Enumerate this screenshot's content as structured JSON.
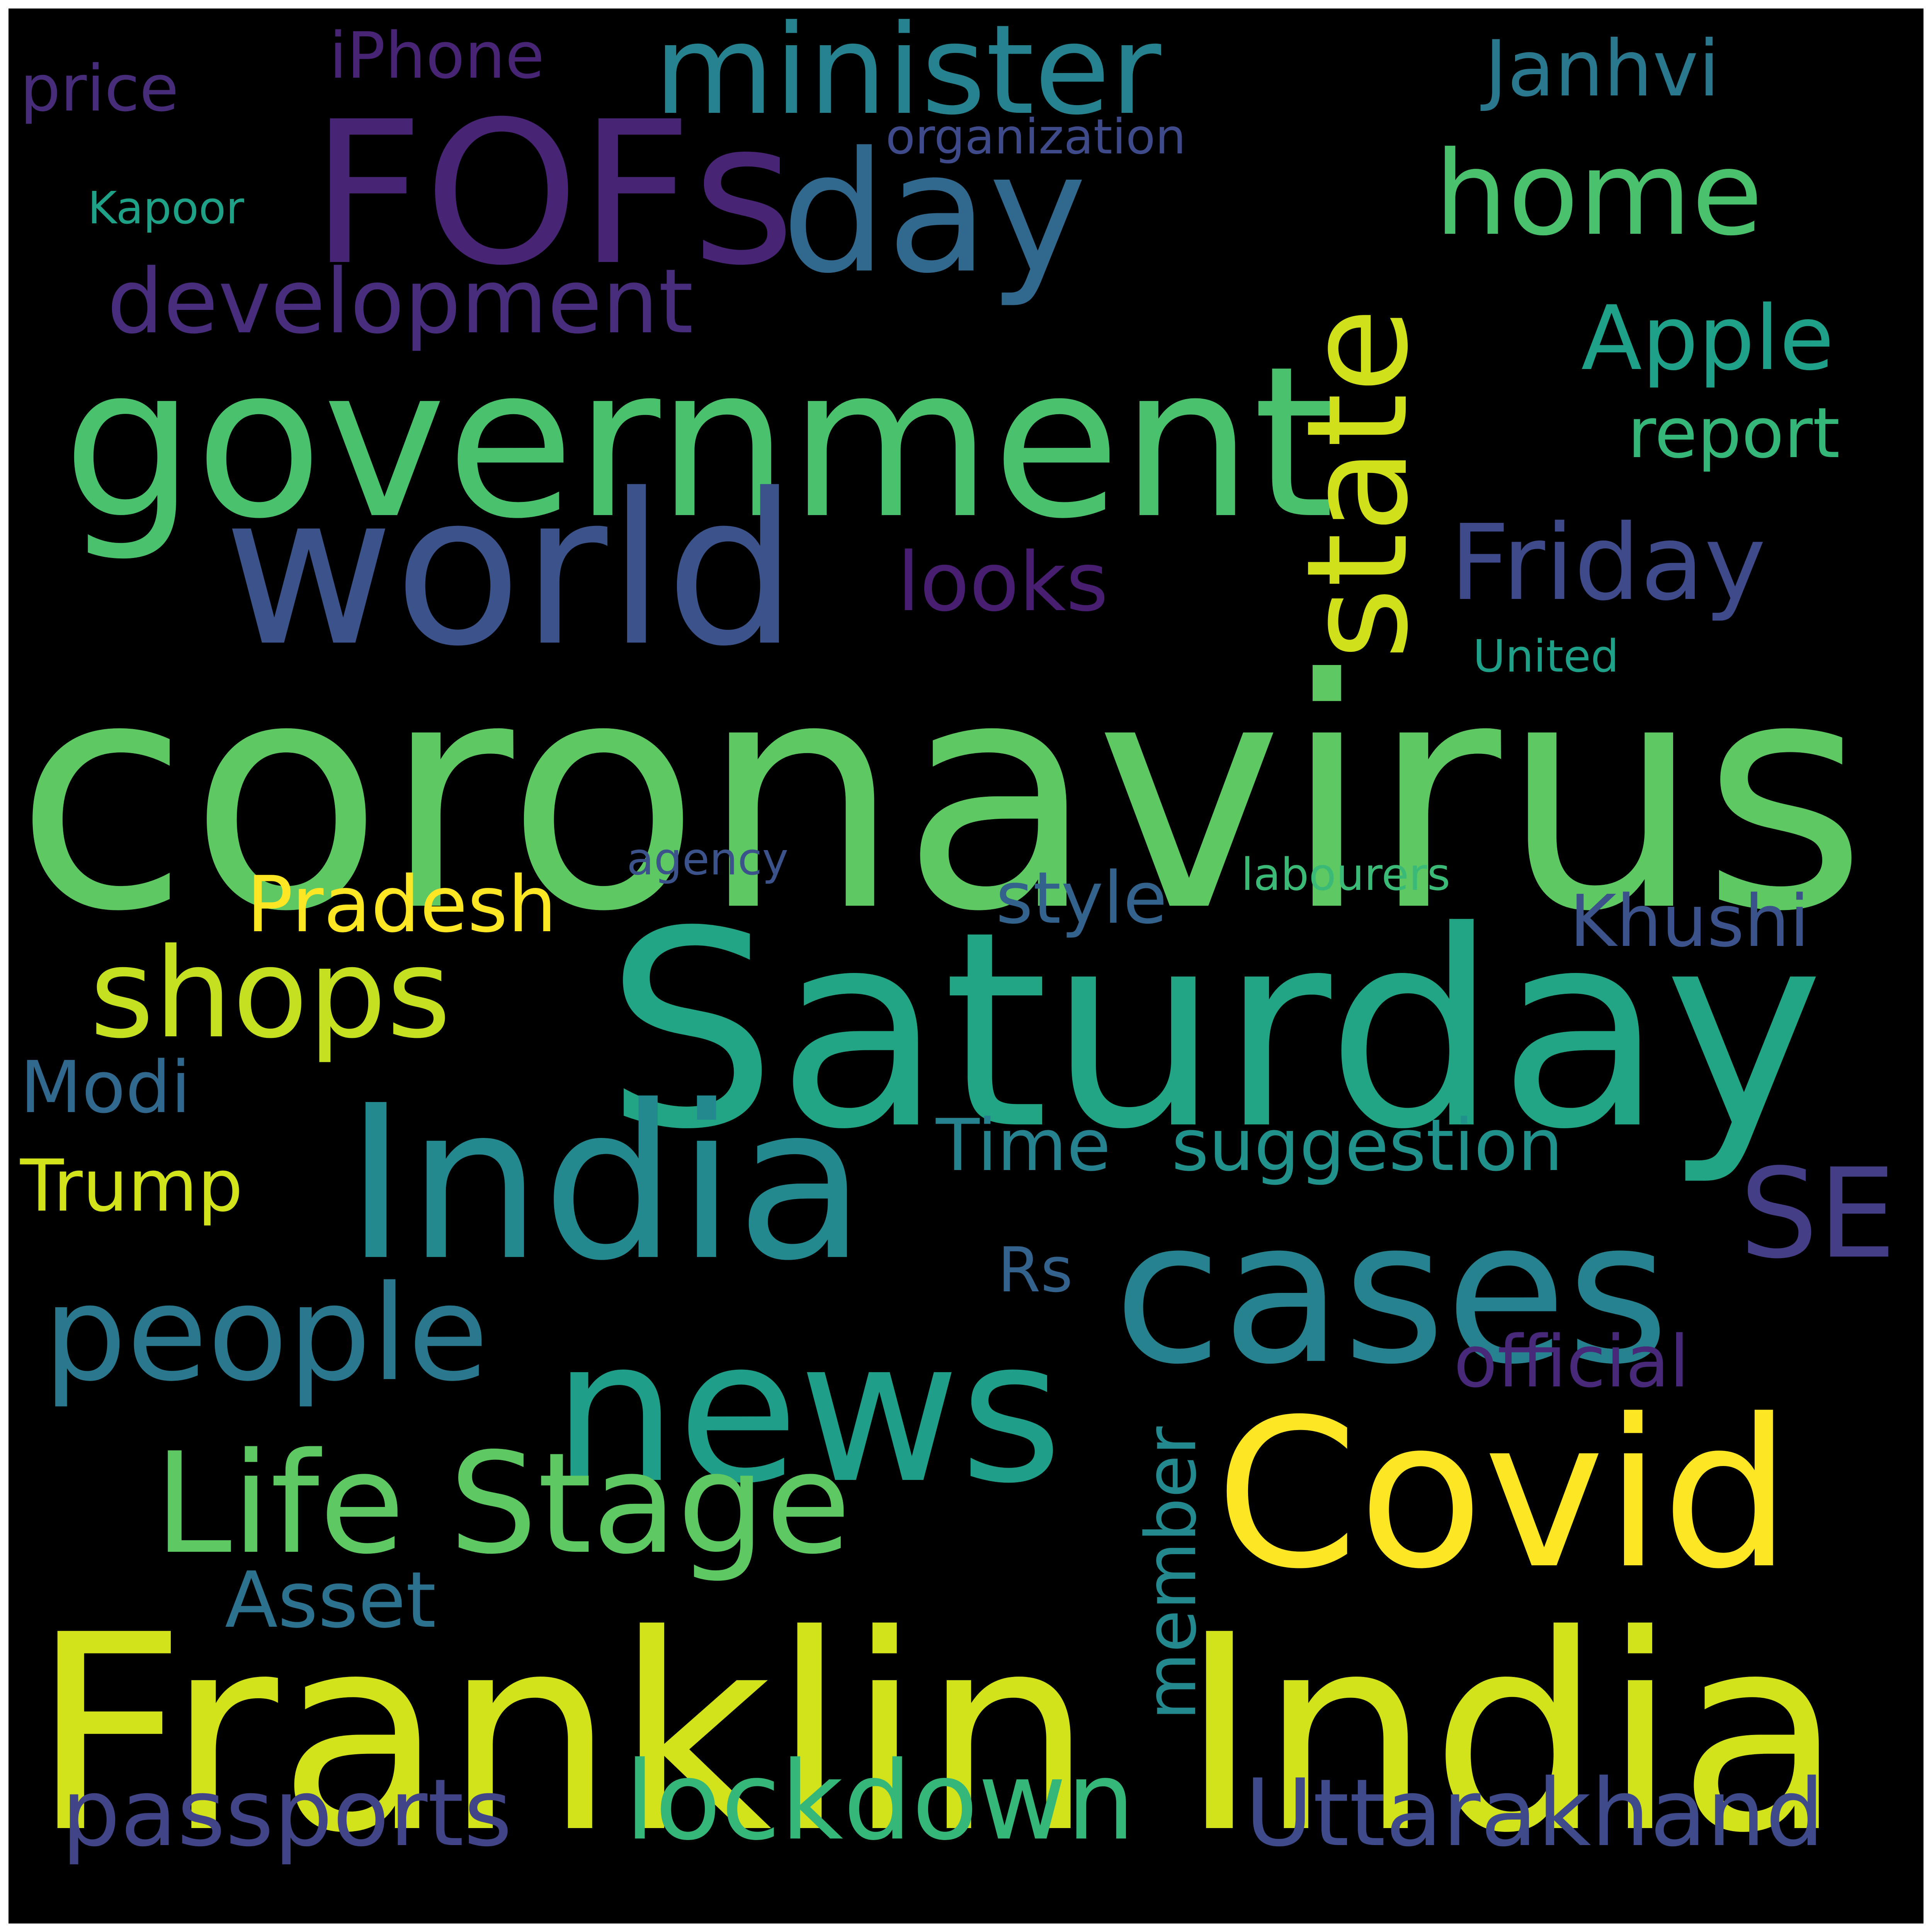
{
  "background_color": "#000000",
  "frame_color": "#ffffff",
  "words": [
    {
      "text": "coronavirus",
      "color": "#5ec962"
    },
    {
      "text": "Saturday",
      "color": "#21a585"
    },
    {
      "text": "Franklin India",
      "color": "#d2e21b"
    },
    {
      "text": "government",
      "color": "#4ac16d"
    },
    {
      "text": "world",
      "color": "#3b528b"
    },
    {
      "text": "FOFs",
      "color": "#482475"
    },
    {
      "text": "India",
      "color": "#23898e"
    },
    {
      "text": "cases",
      "color": "#26828e"
    },
    {
      "text": "news",
      "color": "#1f9e89"
    },
    {
      "text": "Covid",
      "color": "#fde725"
    },
    {
      "text": "state",
      "color": "#d0e11c"
    },
    {
      "text": "day",
      "color": "#31688e"
    },
    {
      "text": "minister",
      "color": "#26828e"
    },
    {
      "text": "home",
      "color": "#4ac16d"
    },
    {
      "text": "people",
      "color": "#2a788e"
    },
    {
      "text": "Life Stage",
      "color": "#5ec962"
    },
    {
      "text": "shops",
      "color": "#c5e021"
    },
    {
      "text": "lockdown",
      "color": "#35b779"
    },
    {
      "text": "Uttarakhand",
      "color": "#3e4a89"
    },
    {
      "text": "passports",
      "color": "#414487"
    },
    {
      "text": "Friday",
      "color": "#3e4a89"
    },
    {
      "text": "SE",
      "color": "#433e85"
    },
    {
      "text": "development",
      "color": "#472d7b"
    },
    {
      "text": "Apple",
      "color": "#1fa088"
    },
    {
      "text": "report",
      "color": "#35b779"
    },
    {
      "text": "Janhvi",
      "color": "#2a788e"
    },
    {
      "text": "looks",
      "color": "#481f70"
    },
    {
      "text": "Pradesh",
      "color": "#fde725"
    },
    {
      "text": "style",
      "color": "#33638d"
    },
    {
      "text": "Khushi",
      "color": "#3b528b"
    },
    {
      "text": "Asset",
      "color": "#2c728e"
    },
    {
      "text": "member",
      "color": "#23898e"
    },
    {
      "text": "Time",
      "color": "#26828e"
    },
    {
      "text": "suggestion",
      "color": "#21918c"
    },
    {
      "text": "Modi",
      "color": "#31688e"
    },
    {
      "text": "Trump",
      "color": "#d2e21b"
    },
    {
      "text": "Rs",
      "color": "#33638d"
    },
    {
      "text": "official",
      "color": "#482878"
    },
    {
      "text": "iPhone",
      "color": "#482475"
    },
    {
      "text": "price",
      "color": "#472c7a"
    },
    {
      "text": "organization",
      "color": "#3e4a89"
    },
    {
      "text": "Kapoor",
      "color": "#1fa187"
    },
    {
      "text": "United",
      "color": "#1fa088"
    },
    {
      "text": "agency",
      "color": "#3b528b"
    },
    {
      "text": "labourers",
      "color": "#3aba76"
    }
  ]
}
